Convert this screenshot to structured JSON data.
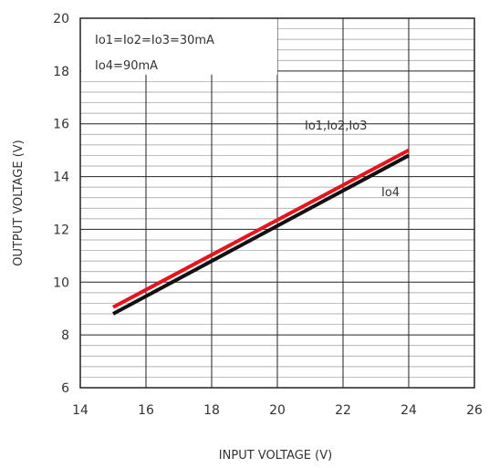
{
  "chart_data": {
    "type": "line",
    "xlabel": "INPUT VOLTAGE (V)",
    "ylabel": "OUTPUT VOLTAGE (V)",
    "xlim": [
      14,
      26
    ],
    "ylim": [
      6,
      20
    ],
    "x_ticks": [
      "14",
      "16",
      "18",
      "20",
      "22",
      "24",
      "26"
    ],
    "y_ticks": [
      "6",
      "8",
      "10",
      "12",
      "14",
      "16",
      "18",
      "20"
    ],
    "grid": true,
    "box_text": [
      "Io1=Io2=Io3=30mA",
      "Io4=90mA"
    ],
    "series": [
      {
        "name": "Io1,Io2,Io3",
        "color": "#e8141c",
        "x": [
          15,
          24
        ],
        "y": [
          9.05,
          15.0
        ]
      },
      {
        "name": "Io4",
        "color": "#111111",
        "x": [
          15,
          24
        ],
        "y": [
          8.8,
          14.8
        ]
      }
    ]
  }
}
